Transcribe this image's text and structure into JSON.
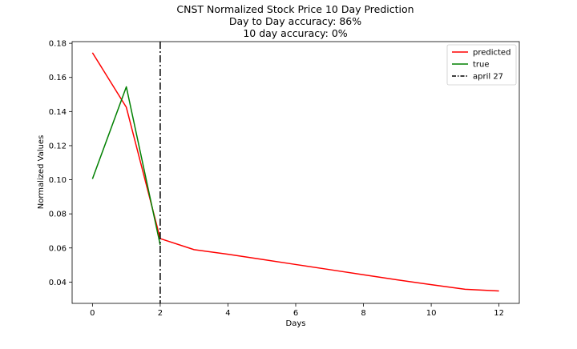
{
  "chart_data": {
    "type": "line",
    "title": [
      "CNST Normalized Stock Price 10 Day Prediction",
      "Day to Day accuracy: 86%",
      "10 day accuracy: 0%"
    ],
    "xlabel": "Days",
    "ylabel": "Normalized Values",
    "xlim": [
      -0.6,
      12.6
    ],
    "ylim": [
      0.0275,
      0.181
    ],
    "x_ticks": [
      0,
      2,
      4,
      6,
      8,
      10,
      12
    ],
    "y_ticks": [
      0.04,
      0.06,
      0.08,
      0.1,
      0.12,
      0.14,
      0.16,
      0.18
    ],
    "x_tick_labels": [
      "0",
      "2",
      "4",
      "6",
      "8",
      "10",
      "12"
    ],
    "y_tick_labels": [
      "0.04",
      "0.06",
      "0.08",
      "0.10",
      "0.12",
      "0.14",
      "0.16",
      "0.18"
    ],
    "series": [
      {
        "name": "predicted",
        "color": "#ff0000",
        "style": "solid",
        "x": [
          0,
          1,
          2,
          3,
          4,
          5,
          6,
          7,
          8,
          9,
          10,
          11,
          12
        ],
        "values": [
          0.1745,
          0.1425,
          0.0655,
          0.059,
          0.0563,
          0.0533,
          0.0503,
          0.0473,
          0.0443,
          0.0413,
          0.0385,
          0.0358,
          0.0348
        ]
      },
      {
        "name": "true",
        "color": "#008000",
        "style": "solid",
        "x": [
          0,
          1,
          2
        ],
        "values": [
          0.1005,
          0.1545,
          0.0618
        ]
      }
    ],
    "vline": {
      "name": "april 27",
      "x": 2,
      "color": "#000000",
      "style": "dashdot"
    },
    "legend_position": "top-right",
    "grid": false
  }
}
